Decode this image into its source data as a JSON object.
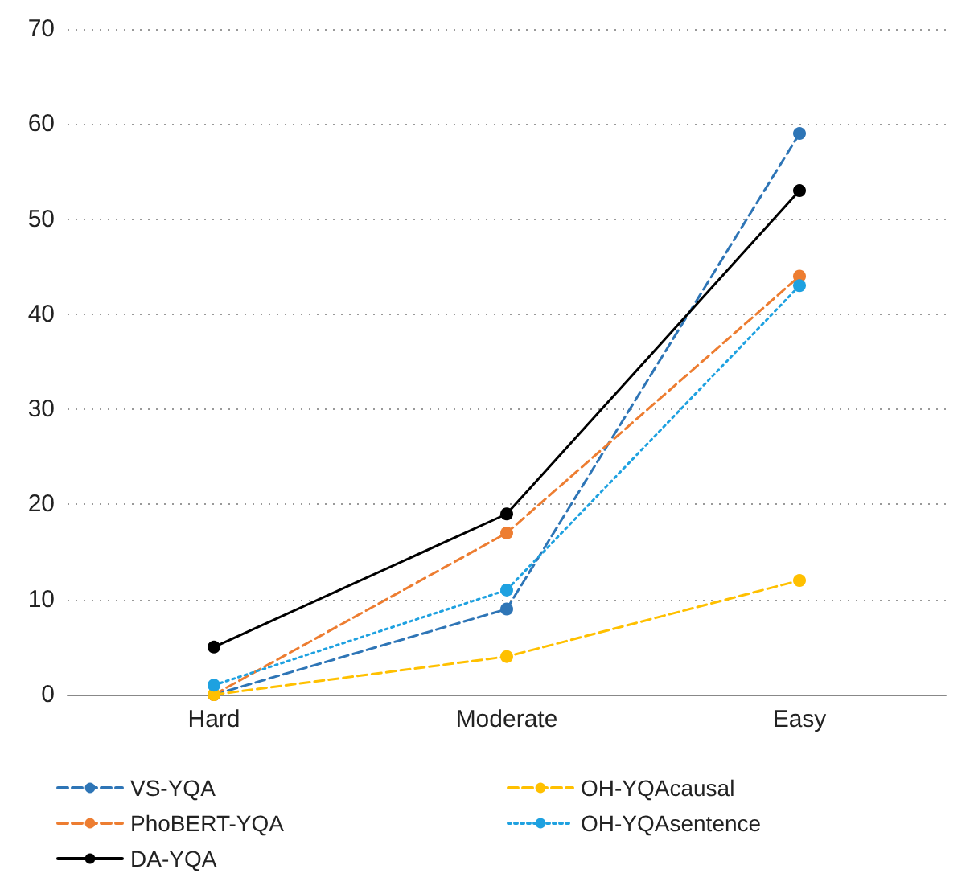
{
  "chart_data": {
    "type": "line",
    "categories": [
      "Hard",
      "Moderate",
      "Easy"
    ],
    "series": [
      {
        "name": "VS-YQA",
        "color": "#2e75b6",
        "values": [
          0,
          9,
          59
        ],
        "line_style": "dashed"
      },
      {
        "name": "PhoBERT-YQA",
        "color": "#ed7d31",
        "values": [
          0,
          17,
          44
        ],
        "line_style": "dashed"
      },
      {
        "name": "DA-YQA",
        "color": "#000000",
        "values": [
          5,
          19,
          53
        ],
        "line_style": "solid"
      },
      {
        "name": "OH-YQAcausal",
        "color": "#ffc000",
        "values": [
          0,
          4,
          12
        ],
        "line_style": "dashed"
      },
      {
        "name": "OH-YQAsentence",
        "color": "#1ea1e0",
        "values": [
          1,
          11,
          43
        ],
        "line_style": "dotted"
      }
    ],
    "ylim": [
      0,
      70
    ],
    "yticks": [
      0,
      10,
      20,
      30,
      40,
      50,
      60,
      70
    ],
    "grid": "y",
    "legend": "bottom",
    "marker": "circle"
  }
}
